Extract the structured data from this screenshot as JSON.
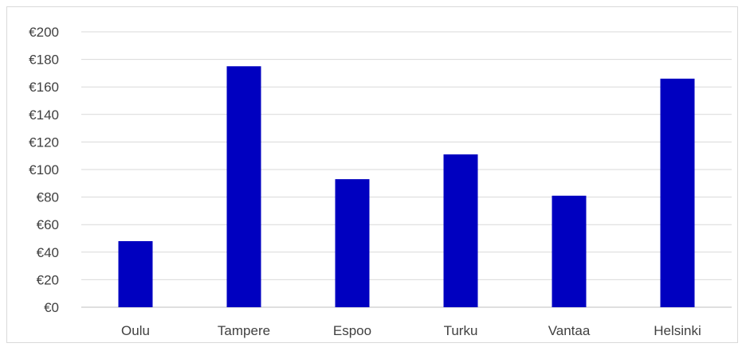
{
  "chart_data": {
    "type": "bar",
    "categories": [
      "Oulu",
      "Tampere",
      "Espoo",
      "Turku",
      "Vantaa",
      "Helsinki"
    ],
    "values": [
      48,
      175,
      93,
      111,
      81,
      166
    ],
    "ylim": [
      0,
      200
    ],
    "ytick_step": 20,
    "ytick_labels": [
      "€0",
      "€20",
      "€40",
      "€60",
      "€80",
      "€100",
      "€120",
      "€140",
      "€160",
      "€180",
      "€200"
    ],
    "grid": true,
    "bar_color": "#0000C0",
    "grid_color": "#d9d9d9",
    "axis_color": "#bfbfbf"
  }
}
